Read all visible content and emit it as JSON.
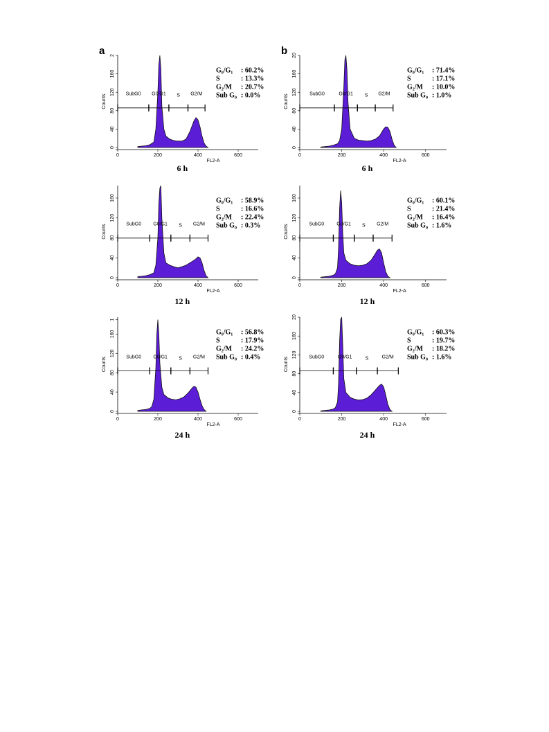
{
  "chart_data": [
    {
      "type": "area",
      "panel": "a",
      "time": "6 h",
      "xlabel": "FL2-A",
      "ylabel": "Counts",
      "color": "#5b1ed6",
      "xlim": [
        0,
        700
      ],
      "ylim": [
        0,
        200
      ],
      "xticks": [
        0,
        200,
        400,
        600
      ],
      "yticks": [
        0,
        40,
        80,
        120,
        160,
        {
          "value": 200,
          "label": "2"
        }
      ],
      "x": [
        100,
        120,
        140,
        160,
        180,
        190,
        200,
        205,
        210,
        215,
        220,
        230,
        240,
        260,
        280,
        300,
        320,
        340,
        360,
        380,
        390,
        400,
        410,
        420,
        430,
        440,
        450
      ],
      "values": [
        2,
        3,
        4,
        6,
        12,
        40,
        120,
        180,
        200,
        170,
        90,
        40,
        25,
        18,
        15,
        14,
        14,
        18,
        35,
        58,
        65,
        60,
        45,
        25,
        10,
        3,
        0
      ],
      "gates": [
        {
          "name": "SubG0",
          "range": [
            0,
            155
          ]
        },
        {
          "name": "G0/G1",
          "range": [
            155,
            255
          ]
        },
        {
          "name": "S",
          "range": [
            255,
            350
          ]
        },
        {
          "name": "G2/M",
          "range": [
            350,
            435
          ]
        }
      ],
      "stats": [
        {
          "label": "G₀/G₁",
          "value": ": 60.2%"
        },
        {
          "label": "S",
          "value": ": 13.3%"
        },
        {
          "label": "G₂/M",
          "value": ": 20.7%"
        },
        {
          "label": "Sub G₀",
          "value": ": 0.0%"
        }
      ]
    },
    {
      "type": "area",
      "panel": "b",
      "time": "6 h",
      "xlabel": "FL2-A",
      "ylabel": "Counts",
      "color": "#5b1ed6",
      "xlim": [
        0,
        700
      ],
      "ylim": [
        0,
        200
      ],
      "xticks": [
        0,
        200,
        400,
        600
      ],
      "yticks": [
        0,
        40,
        80,
        120,
        160,
        {
          "value": 200,
          "label": "20"
        }
      ],
      "x": [
        100,
        120,
        140,
        160,
        180,
        190,
        200,
        210,
        215,
        220,
        225,
        230,
        240,
        260,
        280,
        300,
        320,
        340,
        360,
        380,
        400,
        410,
        420,
        430,
        440,
        450,
        460
      ],
      "values": [
        1,
        2,
        3,
        5,
        8,
        15,
        40,
        130,
        190,
        200,
        170,
        100,
        40,
        20,
        16,
        15,
        14,
        15,
        18,
        25,
        40,
        45,
        44,
        35,
        18,
        5,
        0
      ],
      "gates": [
        {
          "name": "SubG0",
          "range": [
            0,
            165
          ]
        },
        {
          "name": "G0/G1",
          "range": [
            165,
            275
          ]
        },
        {
          "name": "S",
          "range": [
            275,
            360
          ]
        },
        {
          "name": "G2/M",
          "range": [
            360,
            445
          ]
        }
      ],
      "stats": [
        {
          "label": "G₀/G₁",
          "value": ": 71.4%"
        },
        {
          "label": "S",
          "value": ": 17.1%"
        },
        {
          "label": "G₂/M",
          "value": ": 10.0%"
        },
        {
          "label": "Sub G₀",
          "value": ": 1.0%"
        }
      ]
    },
    {
      "type": "area",
      "time": "12 h",
      "xlabel": "FL2-A",
      "ylabel": "Counts",
      "color": "#5b1ed6",
      "xlim": [
        0,
        700
      ],
      "ylim": [
        0,
        185
      ],
      "xticks": [
        0,
        200,
        400,
        600
      ],
      "yticks": [
        0,
        40,
        80,
        120,
        160
      ],
      "x": [
        100,
        120,
        140,
        160,
        180,
        190,
        200,
        205,
        210,
        215,
        220,
        230,
        240,
        260,
        280,
        300,
        320,
        340,
        360,
        380,
        390,
        400,
        410,
        420,
        430,
        440,
        450
      ],
      "values": [
        2,
        3,
        4,
        6,
        10,
        25,
        80,
        150,
        180,
        185,
        120,
        50,
        30,
        25,
        22,
        20,
        22,
        25,
        30,
        35,
        38,
        42,
        40,
        30,
        15,
        4,
        0
      ],
      "gates": [
        {
          "name": "SubG0",
          "range": [
            0,
            160
          ]
        },
        {
          "name": "G0/G1",
          "range": [
            160,
            265
          ]
        },
        {
          "name": "S",
          "range": [
            265,
            360
          ]
        },
        {
          "name": "G2/M",
          "range": [
            360,
            450
          ]
        }
      ],
      "stats": [
        {
          "label": "G₀/G₁",
          "value": ": 58.9%"
        },
        {
          "label": "S",
          "value": ": 16.6%"
        },
        {
          "label": "G₂/M",
          "value": ": 22.4%"
        },
        {
          "label": "Sub G₀",
          "value": ": 0.3%"
        }
      ]
    },
    {
      "type": "area",
      "time": "12 h",
      "xlabel": "FL2-A",
      "ylabel": "Counts",
      "color": "#5b1ed6",
      "xlim": [
        0,
        700
      ],
      "ylim": [
        0,
        185
      ],
      "xticks": [
        0,
        200,
        400,
        600
      ],
      "yticks": [
        0,
        40,
        80,
        120,
        160
      ],
      "x": [
        100,
        120,
        140,
        160,
        170,
        180,
        185,
        190,
        195,
        200,
        205,
        210,
        220,
        240,
        260,
        280,
        300,
        320,
        340,
        360,
        370,
        380,
        390,
        400,
        410,
        420,
        430
      ],
      "values": [
        1,
        2,
        3,
        5,
        8,
        20,
        60,
        140,
        175,
        150,
        90,
        50,
        35,
        28,
        25,
        24,
        25,
        28,
        35,
        48,
        55,
        58,
        50,
        30,
        12,
        3,
        0
      ],
      "gates": [
        {
          "name": "SubG0",
          "range": [
            0,
            160
          ]
        },
        {
          "name": "G0/G1",
          "range": [
            160,
            260
          ]
        },
        {
          "name": "S",
          "range": [
            260,
            350
          ]
        },
        {
          "name": "G2/M",
          "range": [
            350,
            440
          ]
        }
      ],
      "stats": [
        {
          "label": "G₀/G₁",
          "value": ": 60.1%"
        },
        {
          "label": "S",
          "value": ": 21.4%"
        },
        {
          "label": "G₂/M",
          "value": ": 16.4%"
        },
        {
          "label": "Sub G₀",
          "value": ": 1.6%"
        }
      ]
    },
    {
      "type": "area",
      "time": "24 h",
      "xlabel": "FL2-A",
      "ylabel": "Counts",
      "color": "#5b1ed6",
      "xlim": [
        0,
        700
      ],
      "ylim": [
        0,
        195
      ],
      "xticks": [
        0,
        200,
        400,
        600
      ],
      "yticks": [
        0,
        40,
        80,
        120,
        160,
        {
          "value": 190,
          "label": "1"
        }
      ],
      "x": [
        100,
        120,
        140,
        160,
        170,
        180,
        190,
        195,
        200,
        205,
        210,
        220,
        230,
        250,
        270,
        290,
        310,
        330,
        350,
        370,
        380,
        390,
        400,
        410,
        420,
        430,
        440
      ],
      "values": [
        2,
        3,
        4,
        6,
        10,
        25,
        90,
        160,
        190,
        160,
        100,
        50,
        35,
        28,
        25,
        24,
        26,
        30,
        38,
        48,
        52,
        50,
        40,
        25,
        12,
        4,
        0
      ],
      "gates": [
        {
          "name": "SubG0",
          "range": [
            0,
            160
          ]
        },
        {
          "name": "G0/G1",
          "range": [
            160,
            265
          ]
        },
        {
          "name": "S",
          "range": [
            265,
            360
          ]
        },
        {
          "name": "G2/M",
          "range": [
            360,
            450
          ]
        }
      ],
      "stats": [
        {
          "label": "G₀/G₁",
          "value": ": 56.8%"
        },
        {
          "label": "S",
          "value": ": 17.9%"
        },
        {
          "label": "G₂/M",
          "value": ": 24.2%"
        },
        {
          "label": "Sub G₀",
          "value": ": 0.4%"
        }
      ]
    },
    {
      "type": "area",
      "time": "24 h",
      "xlabel": "FL2-A",
      "ylabel": "Counts",
      "color": "#5b1ed6",
      "xlim": [
        0,
        700
      ],
      "ylim": [
        0,
        200
      ],
      "xticks": [
        0,
        200,
        400,
        600
      ],
      "yticks": [
        0,
        40,
        80,
        120,
        160,
        {
          "value": 200,
          "label": "20"
        }
      ],
      "x": [
        100,
        120,
        140,
        160,
        170,
        180,
        185,
        190,
        195,
        200,
        205,
        210,
        220,
        240,
        260,
        280,
        300,
        320,
        340,
        360,
        380,
        390,
        400,
        410,
        420,
        430,
        440
      ],
      "values": [
        1,
        2,
        3,
        5,
        8,
        20,
        60,
        150,
        195,
        200,
        140,
        70,
        40,
        30,
        26,
        24,
        25,
        28,
        35,
        45,
        55,
        58,
        52,
        35,
        15,
        4,
        0
      ],
      "gates": [
        {
          "name": "SubG0",
          "range": [
            0,
            160
          ]
        },
        {
          "name": "G0/G1",
          "range": [
            160,
            270
          ]
        },
        {
          "name": "S",
          "range": [
            270,
            370
          ]
        },
        {
          "name": "G2/M",
          "range": [
            370,
            470
          ]
        }
      ],
      "stats": [
        {
          "label": "G₀/G₁",
          "value": ": 60.3%"
        },
        {
          "label": "S",
          "value": ": 19.7%"
        },
        {
          "label": "G₂/M",
          "value": ": 18.2%"
        },
        {
          "label": "Sub G₀",
          "value": ": 1.6%"
        }
      ]
    }
  ]
}
